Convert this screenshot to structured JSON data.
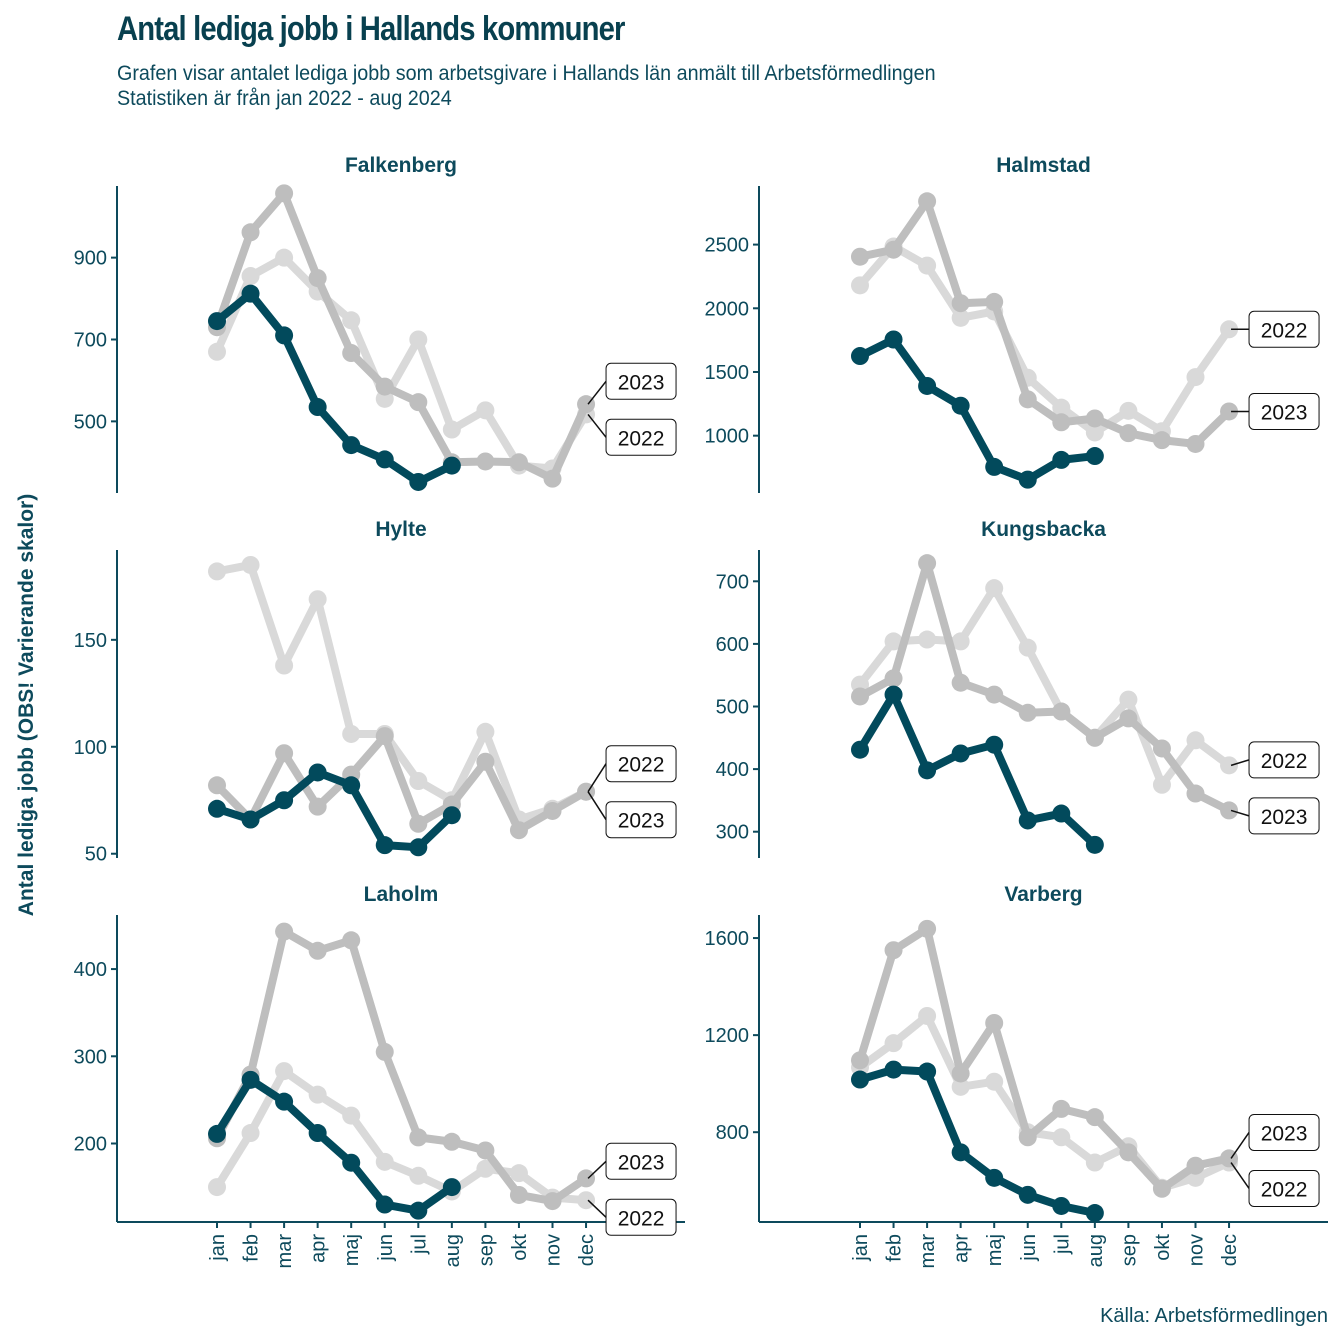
{
  "header": {
    "title": "Antal lediga jobb i Hallands kommuner",
    "subtitle_line1": "Grafen visar antalet lediga jobb som arbetsgivare i Hallands län anmält till Arbetsförmedlingen",
    "subtitle_line2": "Statistiken är från jan 2022 - aug 2024"
  },
  "caption": "Källa: Arbetsförmedlingen",
  "colors": {
    "y2024": "#024a5c",
    "y2023": "#bebebe",
    "y2022": "#d9d9d9",
    "axis": "#0d4a5c",
    "text": "#0d4a5c"
  },
  "chart_data": {
    "type": "line",
    "layout": "facet 3 rows x 2 cols, free y scales",
    "ylabel": "Antal lediga jobb (OBS! Varierande skalor)",
    "xlabel": "",
    "categories": [
      "jan",
      "feb",
      "mar",
      "apr",
      "maj",
      "jun",
      "jul",
      "aug",
      "sep",
      "okt",
      "nov",
      "dec"
    ],
    "series_names": [
      "2022",
      "2023",
      "2024"
    ],
    "grid": false,
    "panels": [
      {
        "name": "Falkenberg",
        "yticks": [
          500,
          700,
          900
        ],
        "ylim": [
          325,
          1075
        ],
        "series": [
          {
            "name": "2022",
            "values": [
              670,
              855,
              900,
              817,
              747,
              555,
              700,
              480,
              527,
              392,
              385,
              517
            ]
          },
          {
            "name": "2023",
            "values": [
              730,
              962,
              1057,
              850,
              667,
              585,
              547,
              400,
              402,
              400,
              360,
              542
            ]
          },
          {
            "name": "2024",
            "values": [
              745,
              812,
              710,
              535,
              442,
              407,
              352,
              392
            ]
          }
        ],
        "end_labels": [
          {
            "text": "2023",
            "series": "2023"
          },
          {
            "text": "2022",
            "series": "2022"
          }
        ]
      },
      {
        "name": "Halmstad",
        "yticks": [
          1000,
          1500,
          2000,
          2500
        ],
        "ylim": [
          550,
          2960
        ],
        "series": [
          {
            "name": "2022",
            "values": [
              2180,
              2485,
              2335,
              1925,
              1975,
              1455,
              1220,
              1025,
              1195,
              1035,
              1460,
              1835
            ]
          },
          {
            "name": "2023",
            "values": [
              2405,
              2460,
              2840,
              2040,
              2050,
              1285,
              1105,
              1135,
              1020,
              965,
              935,
              1190
            ]
          },
          {
            "name": "2024",
            "values": [
              1625,
              1755,
              1390,
              1235,
              755,
              655,
              810,
              840
            ]
          }
        ],
        "end_labels": [
          {
            "text": "2022",
            "series": "2022"
          },
          {
            "text": "2023",
            "series": "2023"
          }
        ]
      },
      {
        "name": "Hylte",
        "yticks": [
          50,
          100,
          150
        ],
        "ylim": [
          48,
          192
        ],
        "series": [
          {
            "name": "2022",
            "values": [
              182,
              185,
              138,
              169,
              106,
              106,
              84,
              75,
              107,
              66,
              71,
              79
            ]
          },
          {
            "name": "2023",
            "values": [
              82,
              66,
              97,
              72,
              87,
              105,
              64,
              73,
              93,
              61,
              70,
              79
            ]
          },
          {
            "name": "2024",
            "values": [
              71,
              66,
              75,
              88,
              82,
              54,
              53,
              68
            ]
          }
        ],
        "end_labels": [
          {
            "text": "2022",
            "series": "2022"
          },
          {
            "text": "2023",
            "series": "2023"
          }
        ]
      },
      {
        "name": "Kungsbacka",
        "yticks": [
          300,
          400,
          500,
          600,
          700
        ],
        "ylim": [
          258,
          750
        ],
        "series": [
          {
            "name": "2022",
            "values": [
              535,
              604,
              607,
              604,
              689,
              594,
              492,
              450,
              511,
              375,
              446,
              406
            ]
          },
          {
            "name": "2023",
            "values": [
              516,
              545,
              729,
              538,
              519,
              490,
              492,
              450,
              481,
              433,
              361,
              334
            ]
          },
          {
            "name": "2024",
            "values": [
              431,
              519,
              398,
              425,
              439,
              318,
              329,
              279
            ]
          }
        ],
        "end_labels": [
          {
            "text": "2022",
            "series": "2022"
          },
          {
            "text": "2023",
            "series": "2023"
          }
        ]
      },
      {
        "name": "Laholm",
        "yticks": [
          200,
          300,
          400
        ],
        "ylim": [
          110,
          462
        ],
        "series": [
          {
            "name": "2022",
            "values": [
              150,
              212,
              283,
              256,
              232,
              179,
              163,
              145,
              171,
              166,
              138,
              135
            ]
          },
          {
            "name": "2023",
            "values": [
              206,
              279,
              443,
              421,
              433,
              305,
              207,
              202,
              192,
              141,
              134,
              160
            ]
          },
          {
            "name": "2024",
            "values": [
              211,
              273,
              248,
              212,
              178,
              130,
              123,
              150
            ]
          }
        ],
        "end_labels": [
          {
            "text": "2023",
            "series": "2023"
          },
          {
            "text": "2022",
            "series": "2022"
          }
        ]
      },
      {
        "name": "Varberg",
        "yticks": [
          800,
          1200,
          1600
        ],
        "ylim": [
          430,
          1695
        ],
        "series": [
          {
            "name": "2022",
            "values": [
              1067,
              1167,
              1279,
              987,
              1008,
              800,
              779,
              675,
              742,
              571,
              612,
              675
            ]
          },
          {
            "name": "2023",
            "values": [
              1096,
              1550,
              1638,
              1042,
              1250,
              779,
              896,
              862,
              717,
              567,
              662,
              692
            ]
          },
          {
            "name": "2024",
            "values": [
              1017,
              1058,
              1050,
              717,
              612,
              542,
              496,
              467
            ]
          }
        ],
        "end_labels": [
          {
            "text": "2023",
            "series": "2023"
          },
          {
            "text": "2022",
            "series": "2022"
          }
        ]
      }
    ]
  }
}
